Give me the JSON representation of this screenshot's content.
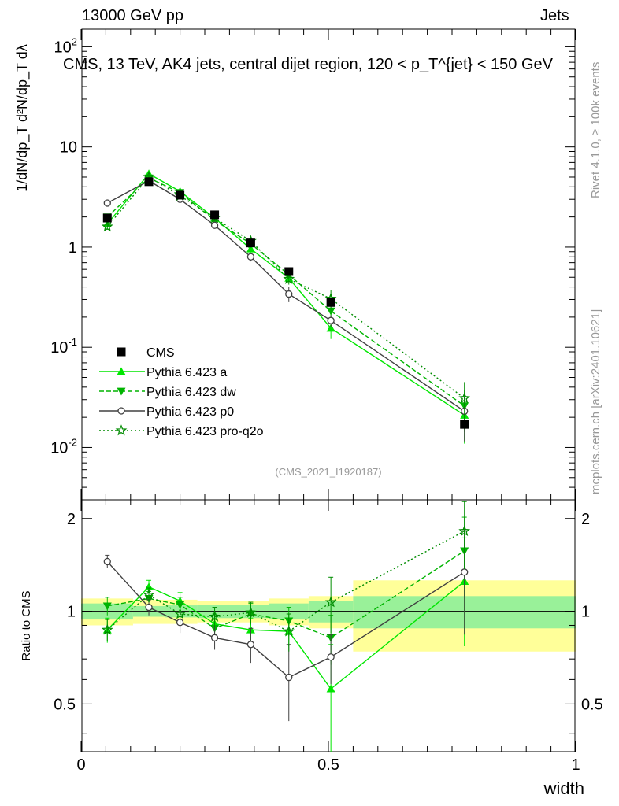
{
  "header": {
    "left": "13000 GeV pp",
    "right": "Jets"
  },
  "side": {
    "rivet": "Rivet 4.1.0, ≥ 100k events",
    "mcplots": "mcplots.cern.ch [arXiv:2401.10621]"
  },
  "chart_data": {
    "type": "line",
    "title": "CMS, 13 TeV, AK4 jets, central dijet region, 120 < p_T^{jet} < 150 GeV",
    "analysis_tag": "(CMS_2021_I1920187)",
    "xlabel": "width",
    "ylabel": "1/dN/dp_T  d²N/dp_T dλ",
    "ratio_ylabel": "Ratio to CMS",
    "xlim": [
      0,
      1
    ],
    "ylim": [
      0.003,
      150
    ],
    "ratio_ylim": [
      0.35,
      2.3
    ],
    "x_ticks": [
      "0",
      "0.5",
      "1"
    ],
    "y_ticks": [
      "10^-2",
      "10^-1",
      "1",
      "10",
      "10^2"
    ],
    "ratio_ticks": [
      "0.5",
      "1",
      "2"
    ],
    "bins": [
      [
        0.0,
        0.105
      ],
      [
        0.105,
        0.17
      ],
      [
        0.17,
        0.235
      ],
      [
        0.235,
        0.305
      ],
      [
        0.305,
        0.38
      ],
      [
        0.38,
        0.46
      ],
      [
        0.46,
        0.55
      ],
      [
        0.55,
        1.0
      ]
    ],
    "x": [
      0.053,
      0.137,
      0.2,
      0.27,
      0.343,
      0.42,
      0.505,
      0.775
    ],
    "data": {
      "name": "CMS",
      "values": [
        1.95,
        4.5,
        3.3,
        2.1,
        1.1,
        0.57,
        0.28,
        0.017
      ],
      "band_inner": [
        0.06,
        0.04,
        0.045,
        0.05,
        0.05,
        0.06,
        0.08,
        0.12
      ],
      "band_outer": [
        0.1,
        0.09,
        0.09,
        0.08,
        0.08,
        0.1,
        0.12,
        0.26
      ]
    },
    "series": [
      {
        "name": "Pythia 6.423 a",
        "color": "#00e600",
        "dash": "",
        "marker": "triangle-up",
        "values": [
          1.7,
          5.4,
          3.6,
          1.95,
          0.96,
          0.49,
          0.155,
          0.021
        ],
        "ratio": [
          0.87,
          1.2,
          1.08,
          0.91,
          0.87,
          0.86,
          0.56,
          1.25
        ],
        "ratio_err": [
          0.08,
          0.06,
          0.07,
          0.07,
          0.08,
          0.09,
          0.22,
          0.48
        ]
      },
      {
        "name": "Pythia 6.423 dw",
        "color": "#00b400",
        "dash": "6,3",
        "marker": "triangle-down",
        "values": [
          2.0,
          4.9,
          3.5,
          1.85,
          1.08,
          0.53,
          0.23,
          0.026
        ],
        "ratio": [
          1.04,
          1.1,
          1.05,
          0.88,
          0.98,
          0.93,
          0.82,
          1.57
        ],
        "ratio_err": [
          0.07,
          0.06,
          0.06,
          0.07,
          0.08,
          0.1,
          0.15,
          0.45
        ]
      },
      {
        "name": "Pythia 6.423 p0",
        "color": "#404040",
        "dash": "",
        "marker": "open-circle",
        "values": [
          2.75,
          4.6,
          3.0,
          1.65,
          0.8,
          0.34,
          0.185,
          0.023
        ],
        "ratio": [
          1.45,
          1.03,
          0.92,
          0.82,
          0.78,
          0.61,
          0.71,
          1.34
        ],
        "ratio_err": [
          0.07,
          0.06,
          0.07,
          0.07,
          0.1,
          0.17,
          0.13,
          0.5
        ]
      },
      {
        "name": "Pythia 6.423 pro-q2o",
        "color": "#008c00",
        "dash": "2,3",
        "marker": "star",
        "values": [
          1.6,
          5.0,
          3.25,
          1.95,
          1.15,
          0.48,
          0.305,
          0.031
        ],
        "ratio": [
          0.87,
          1.13,
          0.98,
          0.96,
          0.99,
          0.86,
          1.07,
          1.82
        ],
        "ratio_err": [
          0.07,
          0.06,
          0.07,
          0.07,
          0.08,
          0.12,
          0.22,
          0.45
        ]
      }
    ]
  }
}
